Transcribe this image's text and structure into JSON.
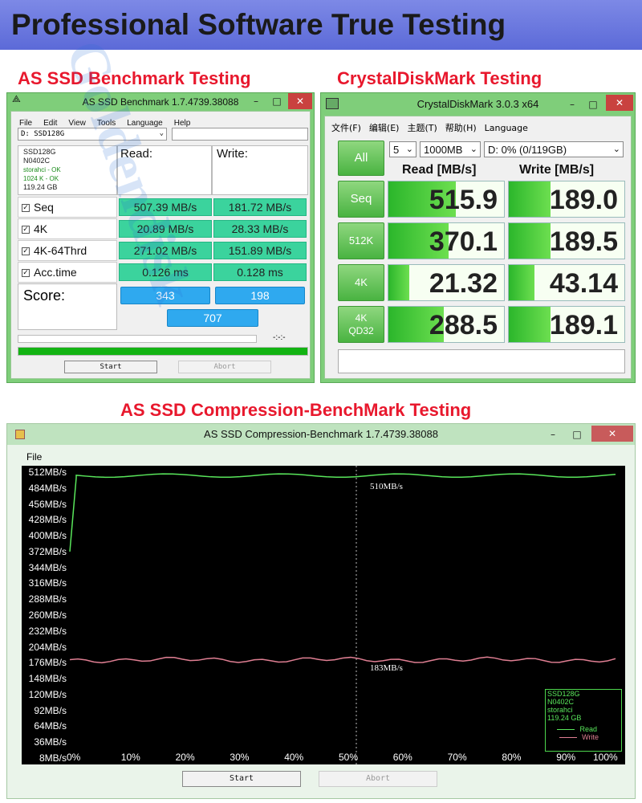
{
  "banner": {
    "title": "Professional Software True Testing"
  },
  "sections": {
    "as_ssd": "AS SSD Benchmark Testing",
    "cdm": "CrystalDiskMark Testing",
    "compression": "AS SSD Compression-BenchMark Testing"
  },
  "as_ssd": {
    "window_title": "AS SSD Benchmark 1.7.4739.38088",
    "menu": [
      "File",
      "Edit",
      "View",
      "Tools",
      "Language",
      "Help"
    ],
    "drive": "D: SSD128G",
    "info": [
      "SSD128G",
      "N0402C",
      "storahci - OK",
      "1024 K - OK",
      "119.24 GB"
    ],
    "read_header": "Read:",
    "write_header": "Write:",
    "rows": [
      {
        "label": "Seq",
        "read": "507.39 MB/s",
        "write": "181.72 MB/s"
      },
      {
        "label": "4K",
        "read": "20.89 MB/s",
        "write": "28.33 MB/s"
      },
      {
        "label": "4K-64Thrd",
        "read": "271.02 MB/s",
        "write": "151.89 MB/s"
      },
      {
        "label": "Acc.time",
        "read": "0.126 ms",
        "write": "0.128 ms"
      }
    ],
    "score_label": "Score:",
    "score_read": "343",
    "score_write": "198",
    "score_total": "707",
    "timer": "-:-:-",
    "progress": 1.0,
    "start": "Start",
    "abort": "Abort"
  },
  "cdm": {
    "window_title": "CrystalDiskMark 3.0.3 x64",
    "menu": [
      "文件(F)",
      "编辑(E)",
      "主题(T)",
      "帮助(H)",
      "Language"
    ],
    "all": "All",
    "count": "5",
    "size": "1000MB",
    "drive": "D: 0% (0/119GB)",
    "read_header": "Read [MB/s]",
    "write_header": "Write [MB/s]",
    "rows": [
      {
        "label": "Seq",
        "read": "515.9",
        "write": "189.0",
        "read_fill": 0.58,
        "write_fill": 0.36
      },
      {
        "label": "512K",
        "read": "370.1",
        "write": "189.5",
        "read_fill": 0.52,
        "write_fill": 0.36
      },
      {
        "label": "4K",
        "read": "21.32",
        "write": "43.14",
        "read_fill": 0.18,
        "write_fill": 0.22
      },
      {
        "label": "4K\nQD32",
        "label1": "4K",
        "label2": "QD32",
        "read": "288.5",
        "write": "189.1",
        "read_fill": 0.48,
        "write_fill": 0.36
      }
    ]
  },
  "compression": {
    "window_title": "AS SSD Compression-Benchmark 1.7.4739.38088",
    "menu": "File",
    "y_labels": [
      "512MB/s",
      "484MB/s",
      "456MB/s",
      "428MB/s",
      "400MB/s",
      "372MB/s",
      "344MB/s",
      "316MB/s",
      "288MB/s",
      "260MB/s",
      "232MB/s",
      "204MB/s",
      "176MB/s",
      "148MB/s",
      "120MB/s",
      "92MB/s",
      "64MB/s",
      "36MB/s",
      "8MB/s"
    ],
    "x_labels": [
      "0%",
      "10%",
      "20%",
      "30%",
      "40%",
      "50%",
      "60%",
      "70%",
      "80%",
      "90%",
      "100%"
    ],
    "read_label": "510MB/s",
    "write_label": "183MB/s",
    "legend": [
      "SSD128G",
      "N0402C",
      "storahci",
      "119.24 GB"
    ],
    "legend_read": "Read",
    "legend_write": "Write",
    "start": "Start",
    "abort": "Abort",
    "colors": {
      "read": "#59e65b",
      "write": "#e07f93"
    }
  },
  "watermark": "Goldendisk"
}
